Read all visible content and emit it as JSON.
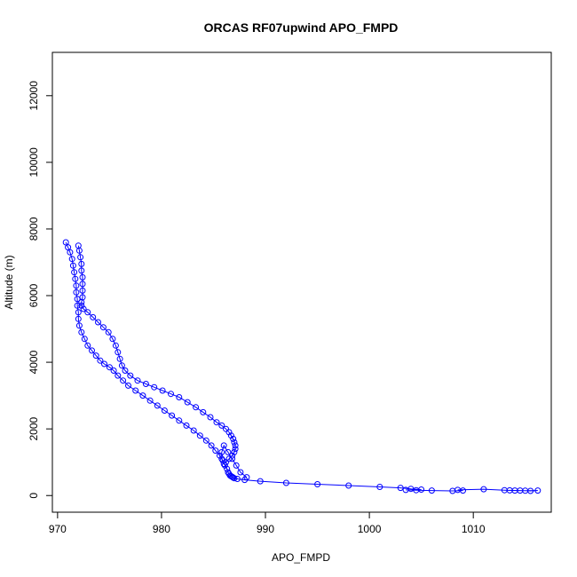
{
  "chart_data": {
    "type": "scatter",
    "title": "ORCAS RF07upwind APO_FMPD",
    "xlabel": "APO_FMPD",
    "ylabel": "Altitude (m)",
    "xlim": [
      969.5,
      1017.5
    ],
    "ylim": [
      -500,
      13300
    ],
    "xticks": [
      970,
      980,
      990,
      1000,
      1010
    ],
    "yticks": [
      0,
      2000,
      4000,
      6000,
      8000,
      10000,
      12000
    ],
    "marker": "open-circle",
    "connected": true,
    "grid": false,
    "legend": "none",
    "color": "#0000ff",
    "series": [
      {
        "x": [
          970.8,
          971.0,
          971.2,
          971.4,
          971.5,
          971.6,
          971.7,
          971.8,
          971.8,
          971.9,
          971.9,
          972.0,
          972.0,
          972.1,
          972.3,
          972.6,
          972.9,
          973.3,
          973.7,
          974.1,
          974.5,
          975.0,
          975.4,
          975.8,
          976.3,
          976.8,
          977.5,
          978.2,
          978.9,
          979.6,
          980.3,
          981.0,
          981.7,
          982.4,
          983.1,
          983.7,
          984.3,
          984.8,
          985.2,
          985.6,
          985.9,
          986.1,
          986.3,
          986.4,
          986.5,
          986.6,
          986.7,
          986.8,
          986.9,
          987.0,
          987.3,
          988.0,
          989.5,
          992.0,
          995.0,
          998.0,
          1001.0,
          1003.0,
          1004.0,
          1005.0,
          1003.5,
          1004.5,
          1006.0,
          1008.0,
          1009.0,
          1008.5,
          1011.0,
          1013.0,
          1014.0,
          1015.0,
          1016.2,
          1015.5,
          1014.5,
          1013.5
        ],
        "y": [
          7600,
          7450,
          7300,
          7100,
          6900,
          6700,
          6500,
          6300,
          6100,
          5900,
          5700,
          5500,
          5300,
          5100,
          4900,
          4700,
          4500,
          4350,
          4200,
          4050,
          3950,
          3850,
          3750,
          3600,
          3450,
          3300,
          3150,
          3000,
          2850,
          2700,
          2550,
          2400,
          2250,
          2100,
          1950,
          1800,
          1650,
          1500,
          1350,
          1200,
          1050,
          900,
          800,
          700,
          650,
          600,
          580,
          560,
          540,
          520,
          500,
          470,
          430,
          380,
          340,
          300,
          260,
          230,
          200,
          180,
          170,
          160,
          150,
          140,
          150,
          170,
          190,
          160,
          150,
          145,
          150,
          140,
          150,
          155
        ]
      },
      {
        "x": [
          972.0,
          972.1,
          972.2,
          972.3,
          972.3,
          972.4,
          972.4,
          972.4,
          972.4,
          972.3,
          972.3,
          972.5,
          972.9,
          973.4,
          973.9,
          974.4,
          974.9,
          975.3,
          975.6,
          975.8,
          976.0,
          976.2,
          976.5,
          977.0,
          977.7,
          978.5,
          979.3,
          980.1,
          980.9,
          981.7,
          982.5,
          983.3,
          984.0,
          984.7,
          985.3,
          985.8,
          986.2,
          986.5,
          986.7,
          986.9,
          987.0,
          987.1,
          987.1,
          987.0,
          986.8,
          986.5,
          986.2,
          986.0,
          985.8,
          985.8,
          986.0,
          986.4,
          986.8,
          987.2,
          987.6,
          988.2
        ],
        "y": [
          7500,
          7350,
          7150,
          6950,
          6750,
          6550,
          6350,
          6150,
          5950,
          5800,
          5700,
          5600,
          5500,
          5350,
          5200,
          5050,
          4900,
          4700,
          4500,
          4300,
          4100,
          3900,
          3750,
          3600,
          3450,
          3350,
          3250,
          3150,
          3050,
          2950,
          2800,
          2650,
          2500,
          2350,
          2200,
          2100,
          2000,
          1900,
          1800,
          1700,
          1600,
          1500,
          1400,
          1300,
          1200,
          1100,
          1000,
          950,
          1100,
          1300,
          1500,
          1300,
          1100,
          900,
          700,
          550
        ]
      }
    ]
  }
}
